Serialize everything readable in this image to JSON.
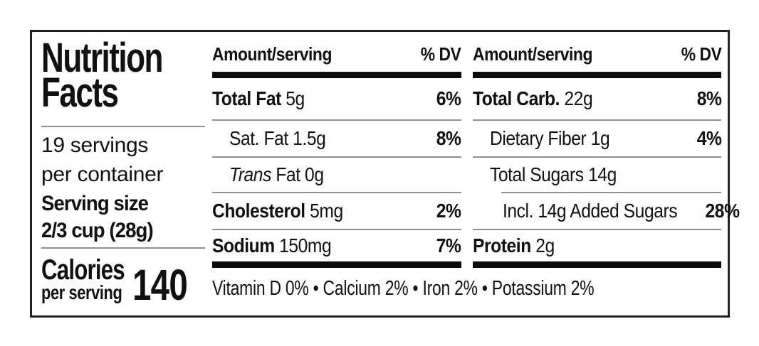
{
  "label": {
    "title_line1": "Nutrition",
    "title_line2": "Facts",
    "servings_line1": "19 servings",
    "servings_line2": "per container",
    "serving_size_label": "Serving size",
    "serving_size_value": "2/3 cup (28g)",
    "calories_label": "Calories",
    "calories_sub": "per serving",
    "calories_value": "140",
    "table_left": {
      "header": {
        "amount": "Amount/serving",
        "dv": "% DV"
      },
      "rows": [
        {
          "bold": "Total Fat",
          "rest": " 5g",
          "dv": "6%"
        },
        {
          "rest": "Sat. Fat 1.5g",
          "dv": "8%"
        },
        {
          "italic": "Trans",
          "rest": " Fat 0g",
          "dv": ""
        },
        {
          "bold": "Cholesterol",
          "rest": " 5mg",
          "dv": "2%"
        },
        {
          "bold": "Sodium",
          "rest": " 150mg",
          "dv": "7%"
        }
      ]
    },
    "table_right": {
      "header": {
        "amount": "Amount/serving",
        "dv": "% DV"
      },
      "rows": [
        {
          "bold": "Total Carb.",
          "rest": " 22g",
          "dv": "8%"
        },
        {
          "rest": "Dietary Fiber 1g",
          "dv": "4%"
        },
        {
          "rest": "Total Sugars 14g",
          "dv": ""
        },
        {
          "rest": "Incl. 14g Added Sugars",
          "dv": "28%"
        },
        {
          "bold": "Protein",
          "rest": " 2g",
          "dv": ""
        }
      ]
    },
    "footnote": "Vitamin D 0% • Calcium 2% • Iron 2% • Potassium 2%"
  },
  "colors": {
    "text": "#111111",
    "thick_bar": "#0d0d0d",
    "thin_divider": "#919191",
    "border": "#222222",
    "background": "#ffffff"
  }
}
